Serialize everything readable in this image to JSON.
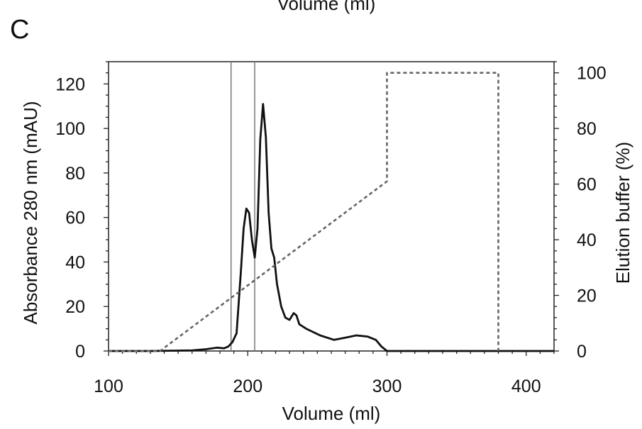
{
  "figure": {
    "panel_label": "C",
    "clipped_top_text": "Volume (ml)"
  },
  "chart_data": {
    "type": "line",
    "xlabel": "Volume (ml)",
    "ylabel": "Absorbance 280 nm (mAU)",
    "y2label": "Elution buffer  (%)",
    "xlim": [
      100,
      420
    ],
    "ylim": [
      0,
      130
    ],
    "y2lim": [
      0,
      104
    ],
    "xticks": [
      100,
      200,
      300,
      400
    ],
    "yticks": [
      0,
      20,
      40,
      60,
      80,
      100,
      120
    ],
    "y2ticks": [
      0,
      20,
      40,
      60,
      80,
      100
    ],
    "grid": false,
    "fraction_markers_x": [
      188,
      205
    ],
    "series": [
      {
        "axis": "left",
        "style": "solid",
        "points": [
          [
            100,
            0
          ],
          [
            130,
            0
          ],
          [
            160,
            0.3
          ],
          [
            170,
            0.8
          ],
          [
            178,
            1.5
          ],
          [
            183,
            1.2
          ],
          [
            186,
            2
          ],
          [
            189,
            4
          ],
          [
            192,
            8
          ],
          [
            195,
            35
          ],
          [
            197,
            55
          ],
          [
            199,
            64
          ],
          [
            201,
            62
          ],
          [
            203,
            50
          ],
          [
            205,
            42
          ],
          [
            207,
            55
          ],
          [
            209,
            95
          ],
          [
            211,
            111
          ],
          [
            213,
            96
          ],
          [
            215,
            62
          ],
          [
            217,
            46
          ],
          [
            219,
            42
          ],
          [
            221,
            30
          ],
          [
            224,
            20
          ],
          [
            227,
            15
          ],
          [
            230,
            14
          ],
          [
            233,
            17
          ],
          [
            235,
            16
          ],
          [
            237,
            12
          ],
          [
            242,
            10
          ],
          [
            252,
            7
          ],
          [
            262,
            5
          ],
          [
            270,
            6
          ],
          [
            278,
            7
          ],
          [
            286,
            6.5
          ],
          [
            292,
            5
          ],
          [
            296,
            2
          ],
          [
            300,
            0
          ],
          [
            420,
            0
          ]
        ]
      },
      {
        "axis": "right",
        "style": "dashed",
        "points": [
          [
            100,
            0
          ],
          [
            137,
            0
          ],
          [
            300,
            61
          ],
          [
            300,
            100
          ],
          [
            380,
            100
          ],
          [
            380,
            0
          ]
        ]
      }
    ]
  }
}
